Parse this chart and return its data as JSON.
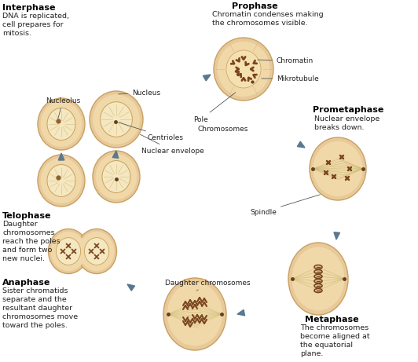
{
  "bg_color": "#ffffff",
  "cell_outer_color": "#e8c99a",
  "cell_inner_light": "#f0d8a8",
  "cell_border_color": "#c8a060",
  "nucleus_color": "#f5e8c0",
  "nucleus_border": "#c8a060",
  "chrom_color": "#7a4520",
  "spindle_color": "#d4c090",
  "arrow_color": "#5a7890",
  "text_color": "#000000",
  "label_color": "#333333",
  "interphase_desc": "DNA is replicated,\ncell prepares for\nmitosis.",
  "prophase_desc": "Chromatin condenses making\nthe chromosomes visible.",
  "prometaphase_desc": "Nuclear envelope\nbreaks down.",
  "metaphase_desc": "The chromosomes\nbecome aligned at\nthe equatorial\nplane.",
  "anaphase_desc": "Sister chromatids\nseparate and the\nresultant daughter\nchromosomes move\ntoward the poles.",
  "telophase_desc": "Daughter\nchromosomes\nreach the poles\nand form two\nnew nuclei."
}
